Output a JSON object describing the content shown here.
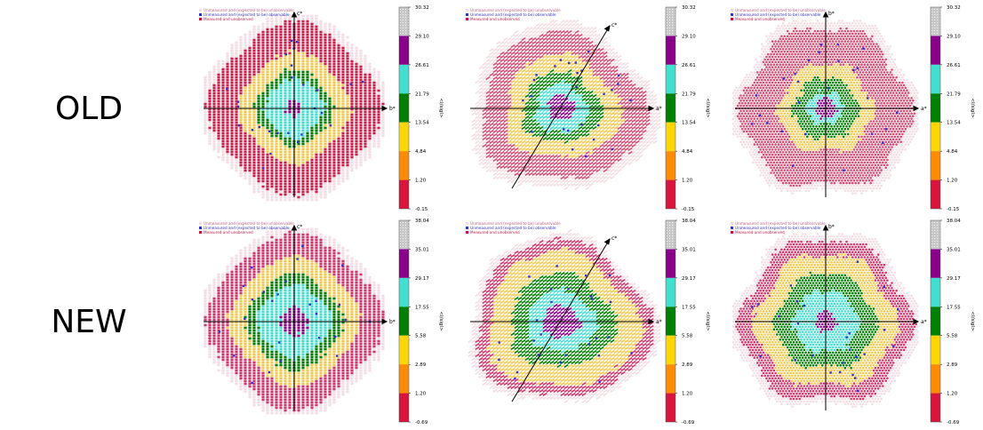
{
  "rows": [
    {
      "label": "OLD",
      "colorbar": {
        "ticks": [
          "30.32",
          "29.10",
          "26.61",
          "21.79",
          "13.54",
          "4.84",
          "1.20",
          "-0.15"
        ],
        "ylabel": "<I/sigI>"
      }
    },
    {
      "label": "NEW",
      "colorbar": {
        "ticks": [
          "38.04",
          "35.01",
          "29.17",
          "17.55",
          "5.58",
          "2.89",
          "1.20",
          "-0.69"
        ],
        "ylabel": "<I/sigI>"
      }
    }
  ],
  "legend": {
    "unmeasured_unobservable": "Unmeasured and (expected to be) unobservable",
    "unmeasured_observable": "Unmeasured and (expected to be) observable",
    "measured_unobserved": "Measured and unobserved"
  },
  "colors": {
    "bins_top_to_bottom": [
      "#c8c8c8",
      "#8b008b",
      "#40e0d0",
      "#008000",
      "#ffd700",
      "#ff8c00",
      "#dc143c"
    ],
    "unobservable": "#f2dde2",
    "observable": "#3030d0",
    "measured_unobserved": "#d0103a"
  },
  "chart_data": [
    {
      "type": "heatmap",
      "row": "OLD",
      "projection": "vertical-lines",
      "axes": {
        "up": "c*",
        "right": "b*",
        "diagonal": ""
      }
    },
    {
      "type": "heatmap",
      "row": "OLD",
      "projection": "diagonal-hatch",
      "axes": {
        "up": "",
        "right": "a*",
        "diagonal": "c*"
      }
    },
    {
      "type": "heatmap",
      "row": "OLD",
      "projection": "hexagonal-dots",
      "axes": {
        "up": "b*",
        "right": "a*",
        "diagonal": ""
      }
    },
    {
      "type": "heatmap",
      "row": "NEW",
      "projection": "vertical-lines",
      "axes": {
        "up": "c*",
        "right": "b*",
        "diagonal": ""
      }
    },
    {
      "type": "heatmap",
      "row": "NEW",
      "projection": "diagonal-hatch",
      "axes": {
        "up": "",
        "right": "a*",
        "diagonal": "c*"
      }
    },
    {
      "type": "heatmap",
      "row": "NEW",
      "projection": "hexagonal-dots",
      "axes": {
        "up": "b*",
        "right": "a*",
        "diagonal": ""
      }
    }
  ]
}
